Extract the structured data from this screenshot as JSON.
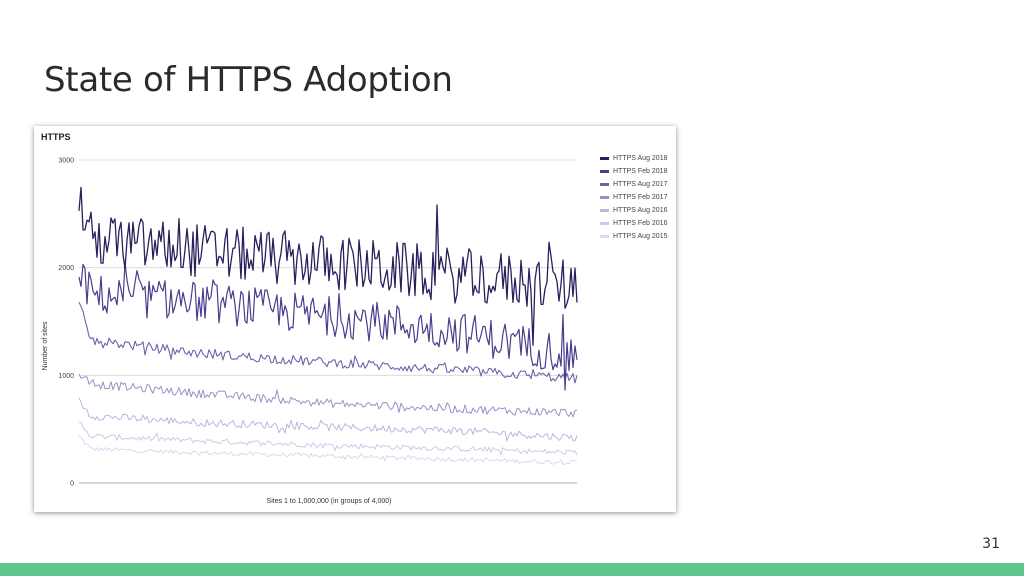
{
  "slide": {
    "title": "State of HTTPS Adoption",
    "page_number": "31",
    "footer_color": "#5cc68d"
  },
  "chart_data": {
    "type": "line",
    "title": "HTTPS",
    "xlabel": "Sites 1 to 1,000,000 (in groups of 4,000)",
    "ylabel": "Number of sites",
    "ylim": [
      0,
      3000
    ],
    "yticks": [
      0,
      1000,
      2000,
      3000
    ],
    "grid": true,
    "legend_position": "right",
    "x": [
      1,
      250
    ],
    "series": [
      {
        "name": "HTTPS Aug 2018",
        "color": "#2a1f5c",
        "start": 2650,
        "base": [
          2280,
          2150,
          2050,
          1930,
          1830
        ],
        "noise": 260,
        "width": 1.3
      },
      {
        "name": "HTTPS Feb 2018",
        "color": "#4a3c8c",
        "start": 1960,
        "base": [
          1760,
          1680,
          1550,
          1420,
          1180
        ],
        "noise": 190,
        "width": 1.2
      },
      {
        "name": "HTTPS Aug 2017",
        "color": "#6f62ad",
        "start": 1660,
        "base": [
          1340,
          1200,
          1120,
          1050,
          970
        ],
        "noise": 45,
        "width": 1.1
      },
      {
        "name": "HTTPS Feb 2017",
        "color": "#9a90c8",
        "start": 1020,
        "base": [
          930,
          830,
          740,
          690,
          650
        ],
        "noise": 40,
        "width": 1
      },
      {
        "name": "HTTPS Aug 2016",
        "color": "#bdb6dd",
        "start": 760,
        "base": [
          630,
          560,
          520,
          490,
          420
        ],
        "noise": 35,
        "width": 1
      },
      {
        "name": "HTTPS Feb 2016",
        "color": "#cfc9e6",
        "start": 570,
        "base": [
          440,
          390,
          350,
          320,
          280
        ],
        "noise": 25,
        "width": 1
      },
      {
        "name": "HTTPS Aug 2015",
        "color": "#dcd8ee",
        "start": 430,
        "base": [
          320,
          280,
          250,
          220,
          190
        ],
        "noise": 20,
        "width": 1
      }
    ]
  }
}
